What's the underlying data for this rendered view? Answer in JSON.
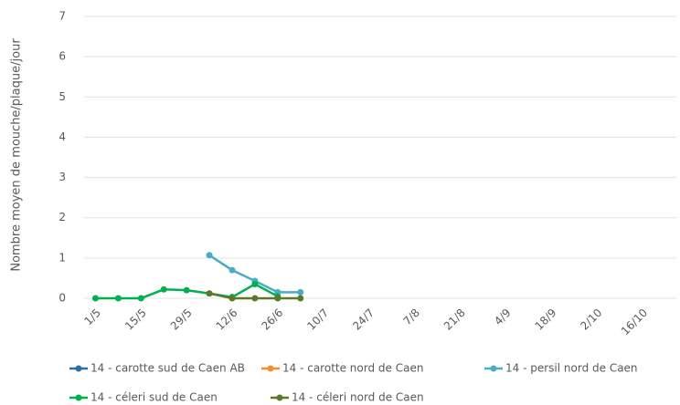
{
  "chart_data": {
    "type": "line",
    "ylabel": "Nombre moyen de mouche/plaque/jour",
    "categories": [
      "1/5",
      null,
      "15/5",
      null,
      "29/5",
      null,
      "12/6",
      null,
      "26/6",
      null,
      "10/7",
      null,
      "24/7",
      null,
      "7/8",
      null,
      "21/8",
      null,
      "4/9",
      null,
      "18/9",
      null,
      "2/10",
      null,
      "16/10",
      null
    ],
    "series": [
      {
        "name": "14 - carotte  sud de Caen AB",
        "color": "#2e6f9e",
        "values": [
          null,
          null,
          null,
          null,
          null,
          null,
          null,
          null,
          null,
          null,
          null,
          null,
          null,
          null,
          null,
          null,
          null,
          null,
          null,
          null,
          null,
          null,
          null,
          null,
          null,
          null
        ]
      },
      {
        "name": "14 - carotte  nord de Caen",
        "color": "#f28e2b",
        "values": [
          null,
          null,
          null,
          null,
          null,
          null,
          null,
          null,
          null,
          null,
          null,
          null,
          null,
          null,
          null,
          null,
          null,
          null,
          null,
          null,
          null,
          null,
          null,
          null,
          null,
          null
        ]
      },
      {
        "name": "14 - persil nord de Caen",
        "color": "#4bacc6",
        "values": [
          null,
          null,
          null,
          null,
          null,
          1.07,
          0.7,
          0.43,
          0.15,
          0.15,
          null,
          null,
          null,
          null,
          null,
          null,
          null,
          null,
          null,
          null,
          null,
          null,
          null,
          null,
          null,
          null
        ]
      },
      {
        "name": "14 - céleri sud de Caen",
        "color": "#00b050",
        "values": [
          0,
          0,
          0,
          0.22,
          0.2,
          0.12,
          0.03,
          0.35,
          0.05,
          null,
          null,
          null,
          null,
          null,
          null,
          null,
          null,
          null,
          null,
          null,
          null,
          null,
          null,
          null,
          null,
          null
        ]
      },
      {
        "name": "14 - céleri nord de Caen",
        "color": "#5a7a2a",
        "values": [
          null,
          null,
          null,
          null,
          null,
          0.12,
          0,
          0,
          0,
          0,
          null,
          null,
          null,
          null,
          null,
          null,
          null,
          null,
          null,
          null,
          null,
          null,
          null,
          null,
          null,
          null
        ]
      }
    ],
    "ylim": [
      0,
      7
    ],
    "yticks": [
      0,
      1,
      2,
      3,
      4,
      5,
      6,
      7
    ],
    "grid": true,
    "legend": "bottom"
  }
}
